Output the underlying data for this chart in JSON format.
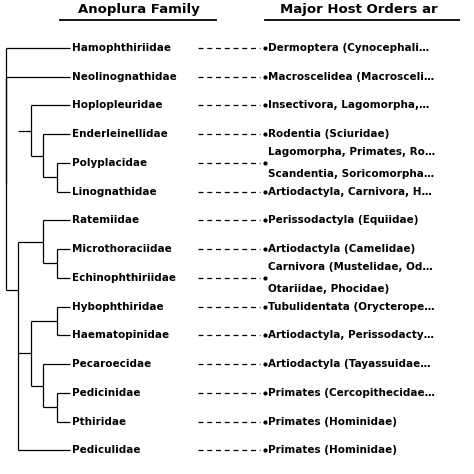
{
  "title_left": "Anoplura Family",
  "title_right": "Major Host Orders ar",
  "families": [
    "Hamophthiriidae",
    "Neolinognathidae",
    "Hoplopleuridae",
    "Enderleinellidae",
    "Polyplacidae",
    "Linognathidae",
    "Ratemiidae",
    "Microthoraciidae",
    "Echinophthiriidae",
    "Hybophthiridae",
    "Haematopinidae",
    "Pecaroecidae",
    "Pedicinidae",
    "Pthiridae",
    "Pediculidae"
  ],
  "hosts": [
    "Dermoptera (Cynocephali…",
    "Macroscelidea (Macrosceli…",
    "Insectivora, Lagomorpha,…",
    "Rodentia (Sciuridae)",
    "Lagomorpha, Primates, Ro…",
    "Artiodactyla, Carnivora, H…",
    "Perissodactyla (Equiidae)",
    "Artiodactyla (Camelidae)",
    "Carnivora (Mustelidae, Od…",
    "Tubulidentata (Orycterope…",
    "Artiodactyla, Perissodacty…",
    "Artiodactyla (Tayassuidae…",
    "Primates (Cercopithecidae…",
    "Primates (Hominidae)",
    "Primates (Hominidae)"
  ],
  "hosts_line2": [
    "",
    "",
    "",
    "",
    "Scandentia, Soricomorpha…",
    "",
    "",
    "",
    "Otariidae, Phocidae)",
    "",
    "",
    "",
    "",
    "",
    ""
  ],
  "tree_color": "#000000",
  "text_color": "#000000",
  "bg_color": "#ffffff",
  "font_size_family": 7.5,
  "font_size_host": 7.5,
  "font_size_title": 9.5
}
